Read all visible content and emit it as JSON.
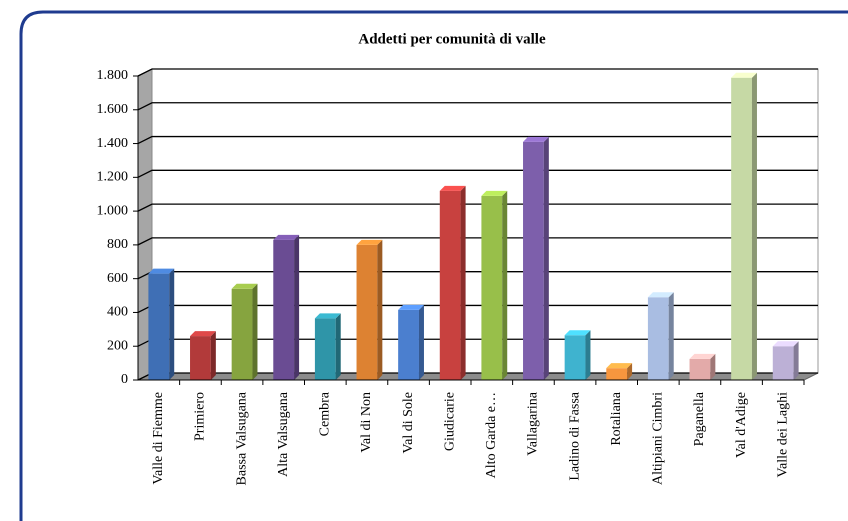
{
  "chart_data": {
    "type": "bar",
    "title": "Addetti per comunità di valle",
    "categories": [
      "Valle di Fiemme",
      "Primiero",
      "Bassa Valsugana",
      "Alta Valsugana",
      "Cembra",
      "Val di Non",
      "Val di Sole",
      "Giudicarie",
      "Alto Garda e…",
      "Vallagarina",
      "Ladino di Fassa",
      "Rotaliana",
      "Altipiani Cimbri",
      "Paganella",
      "Val d'Adige",
      "Valle dei Laghi"
    ],
    "values": [
      630,
      260,
      540,
      830,
      365,
      800,
      415,
      1120,
      1090,
      1410,
      265,
      70,
      490,
      125,
      1790,
      200
    ],
    "colors": [
      "#3f6fb5",
      "#b23a3a",
      "#86a43f",
      "#6a4c93",
      "#2f95a8",
      "#dd8232",
      "#4b7fcf",
      "#c8413f",
      "#98bf4a",
      "#7d5fab",
      "#3fb3cf",
      "#f7963e",
      "#a9bde2",
      "#e3aaa9",
      "#c6d9a5",
      "#bcb0d6"
    ],
    "ylim": [
      0,
      1800
    ],
    "yticks": [
      0,
      200,
      400,
      600,
      800,
      {
        "value": 1000,
        "label": "1.000"
      },
      {
        "value": 1200,
        "label": "1.200"
      },
      {
        "value": 1400,
        "label": "1.400"
      },
      {
        "value": 1600,
        "label": "1.600"
      },
      {
        "value": 1800,
        "label": "1.800"
      }
    ],
    "grid": true
  }
}
